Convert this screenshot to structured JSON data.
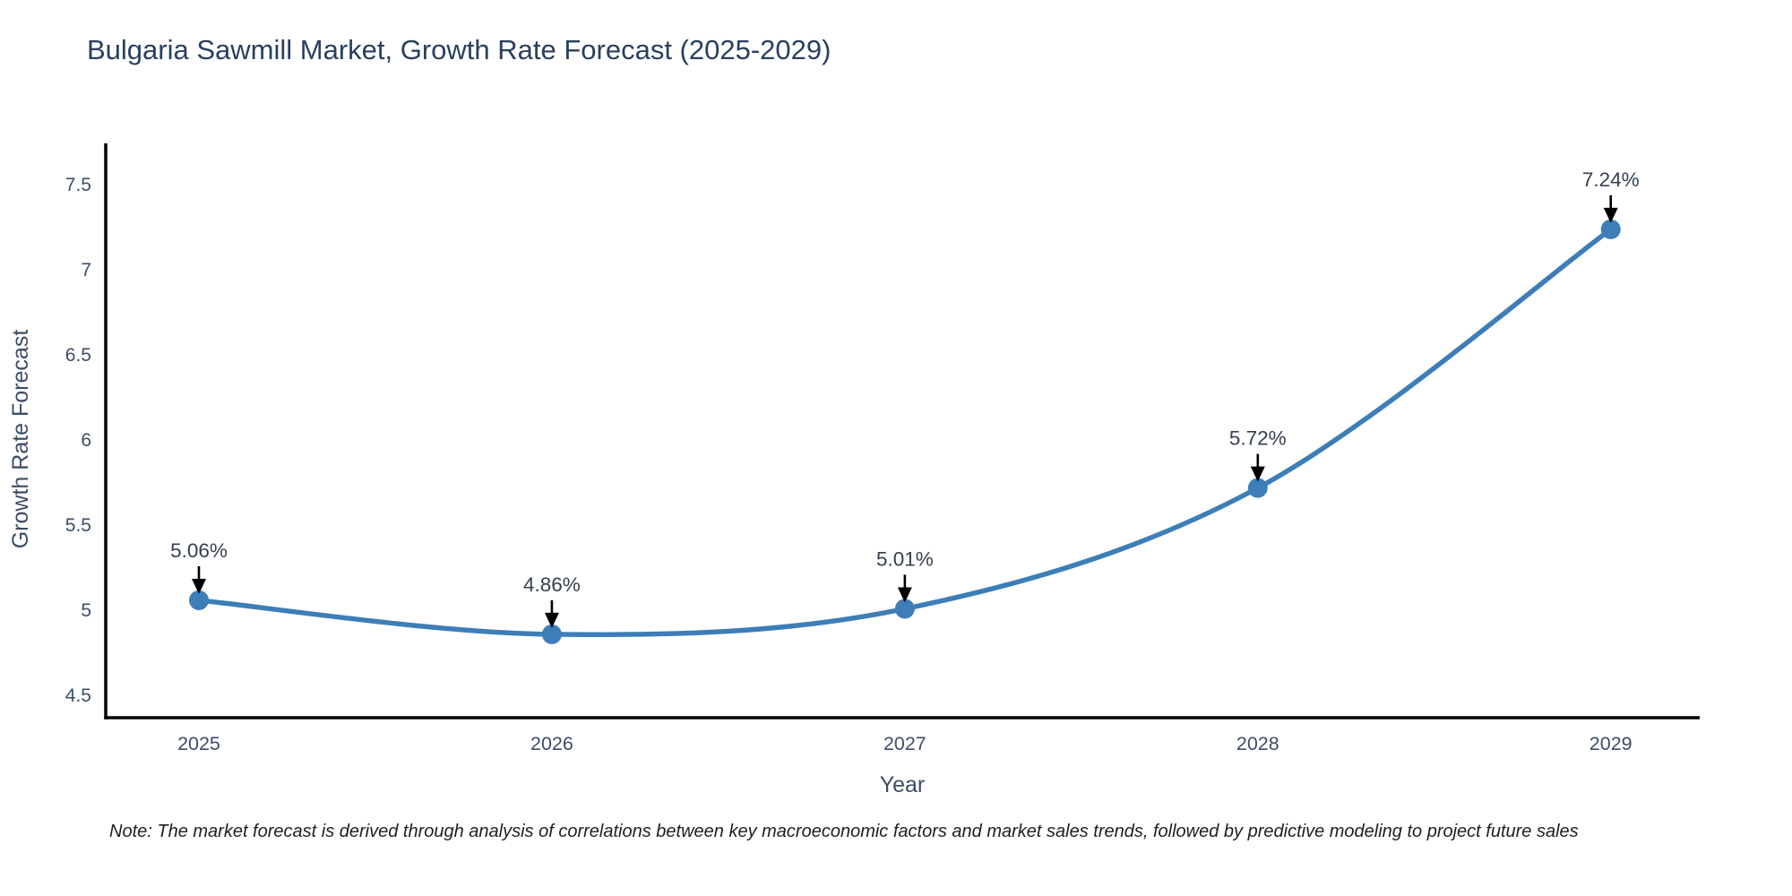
{
  "note": "Note: The market forecast is derived through analysis of correlations between key macroeconomic factors and market sales trends, followed by predictive modeling to project future sales",
  "chart_data": {
    "type": "line",
    "title": "Bulgaria Sawmill Market, Growth Rate Forecast (2025-2029)",
    "xlabel": "Year",
    "ylabel": "Growth Rate Forecast",
    "x": [
      2025,
      2026,
      2027,
      2028,
      2029
    ],
    "y": [
      5.06,
      4.86,
      5.01,
      5.72,
      7.24
    ],
    "point_labels": [
      "5.06%",
      "4.86%",
      "5.01%",
      "5.72%",
      "7.24%"
    ],
    "x_tick_labels": [
      "2025",
      "2026",
      "2027",
      "2028",
      "2029"
    ],
    "y_ticks": [
      4.5,
      5,
      5.5,
      6,
      6.5,
      7,
      7.5
    ],
    "y_tick_labels": [
      "4.5",
      "5",
      "5.5",
      "6",
      "6.5",
      "7",
      "7.5"
    ],
    "xlim": [
      2024.736,
      2029.252
    ],
    "ylim": [
      4.37,
      7.745
    ],
    "grid": false,
    "legend": false,
    "line_shape": "spline",
    "colors": {
      "line": "#3d7eb8",
      "marker": "#3d7eb8",
      "axis": "#000000",
      "title_text": "#2a3f5f",
      "tick_text": "#3c4d66",
      "axis_label_text": "#3c4d66",
      "annotation_text": "#333f50",
      "arrow": "#000000",
      "note_text": "#1f1f1f",
      "background": "#ffffff"
    }
  }
}
